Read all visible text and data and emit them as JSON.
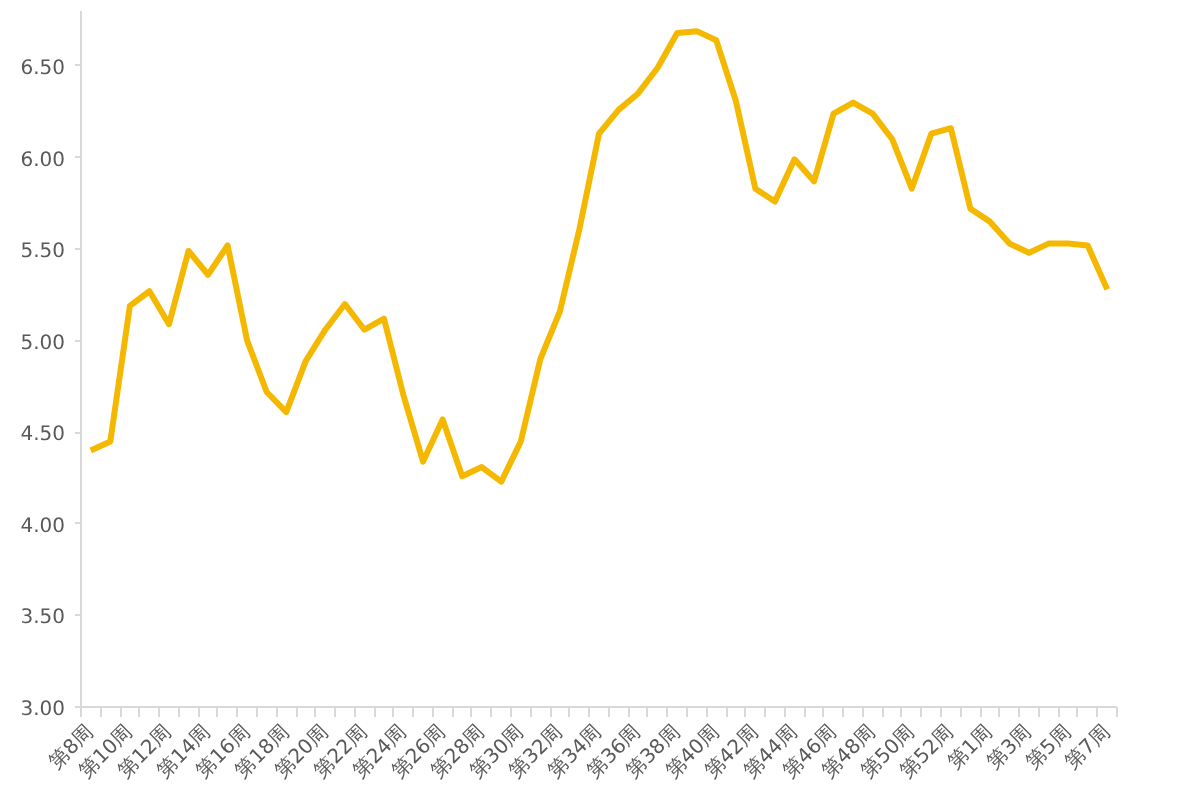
{
  "chart_data": {
    "type": "line",
    "categories": [
      "第8周",
      null,
      "第10周",
      null,
      "第12周",
      null,
      "第14周",
      null,
      "第16周",
      null,
      "第18周",
      null,
      "第20周",
      null,
      "第22周",
      null,
      "第24周",
      null,
      "第26周",
      null,
      "第28周",
      null,
      "第30周",
      null,
      "第32周",
      null,
      "第34周",
      null,
      "第36周",
      null,
      "第38周",
      null,
      "第40周",
      null,
      "第42周",
      null,
      "第44周",
      null,
      "第46周",
      null,
      "第48周",
      null,
      "第50周",
      null,
      "第52周",
      null,
      "第1周",
      null,
      "第3周",
      null,
      "第5周",
      null,
      "第7周"
    ],
    "series": [
      {
        "color": "#f5b800",
        "values": [
          4.4,
          4.45,
          5.19,
          5.27,
          5.09,
          5.49,
          5.36,
          5.52,
          5.0,
          4.72,
          4.61,
          4.89,
          5.06,
          5.2,
          5.06,
          5.12,
          4.7,
          4.34,
          4.57,
          4.26,
          4.31,
          4.23,
          4.45,
          4.9,
          5.16,
          5.61,
          6.13,
          6.26,
          6.35,
          6.49,
          6.68,
          6.69,
          6.64,
          6.31,
          5.83,
          5.76,
          5.99,
          5.87,
          6.24,
          6.3,
          6.24,
          6.1,
          5.83,
          6.13,
          6.16,
          5.72,
          5.65,
          5.53,
          5.48,
          5.53,
          5.53,
          5.52,
          5.28
        ]
      }
    ],
    "ylim": [
      3,
      6.8
    ],
    "yticks": [
      {
        "value": 3,
        "label": "3.00"
      },
      {
        "value": 3.5,
        "label": "3.50"
      },
      {
        "value": 4,
        "label": "4.00"
      },
      {
        "value": 4.5,
        "label": "4.50"
      },
      {
        "value": 5,
        "label": "5.00"
      },
      {
        "value": 5.5,
        "label": "5.50"
      },
      {
        "value": 6,
        "label": "6.00"
      },
      {
        "value": 6.5,
        "label": "6.50"
      }
    ],
    "grid": false,
    "marker": "none",
    "line_style": "solid"
  }
}
